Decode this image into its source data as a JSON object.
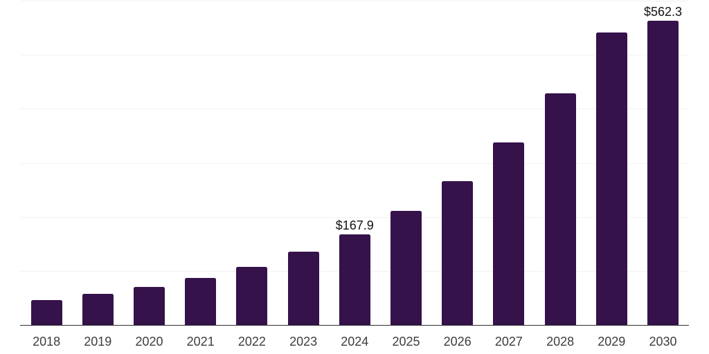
{
  "chart_data": {
    "type": "bar",
    "title": "",
    "xlabel": "",
    "ylabel": "",
    "categories": [
      "2018",
      "2019",
      "2020",
      "2021",
      "2022",
      "2023",
      "2024",
      "2025",
      "2026",
      "2027",
      "2028",
      "2029",
      "2030"
    ],
    "values": [
      45.7,
      57.2,
      70.0,
      87.4,
      107.5,
      135.2,
      167.9,
      210.7,
      266.3,
      337.7,
      428.6,
      541.5,
      562.3
    ],
    "data_labels": [
      {
        "category": "2024",
        "text": "$167.9"
      },
      {
        "category": "2030",
        "text": "$562.3"
      }
    ],
    "currency_prefix": "$",
    "ylim": [
      0,
      600
    ],
    "gridline_step": 100,
    "grid": "horizontal",
    "y_tick_labels_shown": false,
    "legend": "none"
  },
  "colors": {
    "bar": "#35124a",
    "gridline": "#f2f2f2",
    "axis_line": "#2e2e2e",
    "tick_label": "#3d3d3d",
    "data_label": "#121212",
    "background": "#ffffff"
  }
}
